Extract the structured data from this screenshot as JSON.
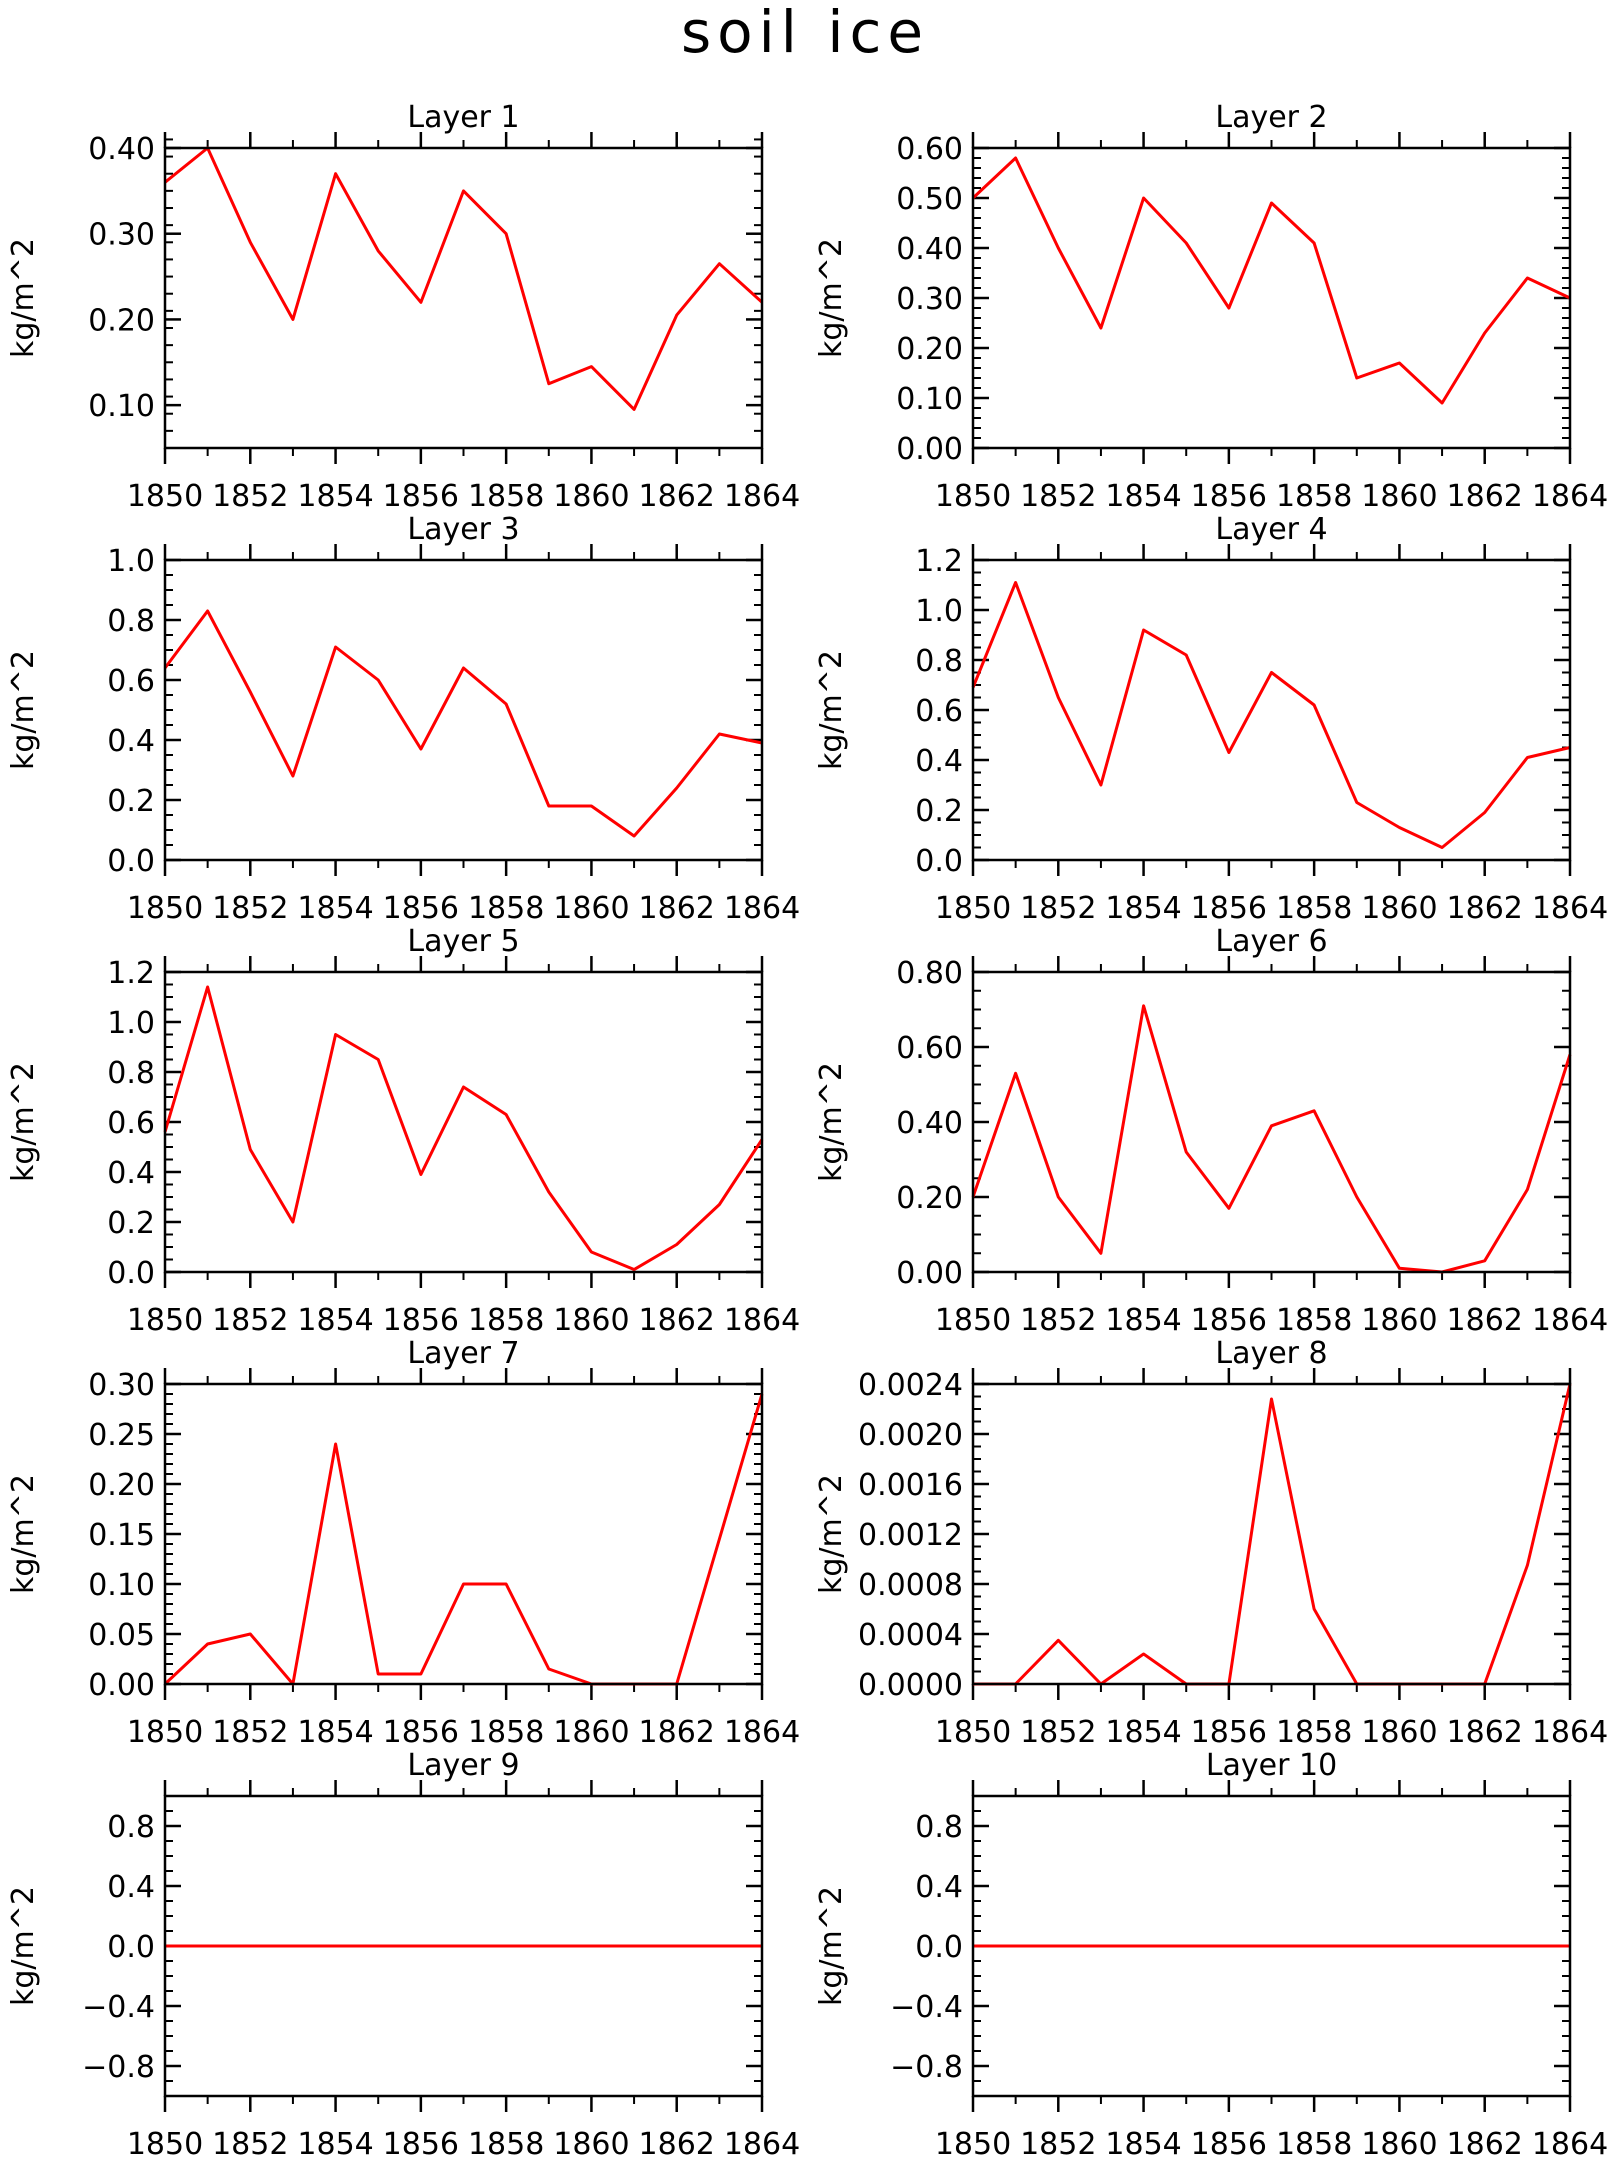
{
  "figure_title": "soil ice",
  "line_color": "#ff0000",
  "chart_data": [
    {
      "type": "line",
      "title": "Layer 1",
      "ylabel": "kg/m^2",
      "xlabel": "",
      "x": [
        1850,
        1851,
        1852,
        1853,
        1854,
        1855,
        1856,
        1857,
        1858,
        1859,
        1860,
        1861,
        1862,
        1863,
        1864
      ],
      "values": [
        0.36,
        0.4,
        0.29,
        0.2,
        0.37,
        0.28,
        0.22,
        0.35,
        0.3,
        0.125,
        0.145,
        0.095,
        0.205,
        0.265,
        0.22
      ],
      "ylim": [
        0.05,
        0.4
      ],
      "yticks": [
        0.1,
        0.2,
        0.3,
        0.4
      ],
      "ytick_labels": [
        "0.10",
        "0.20",
        "0.30",
        "0.40"
      ],
      "yminor": 0.02,
      "xticks": [
        "1850",
        "1852",
        "1854",
        "1856",
        "1858",
        "1860",
        "1862",
        "1864"
      ]
    },
    {
      "type": "line",
      "title": "Layer 2",
      "ylabel": "kg/m^2",
      "xlabel": "",
      "x": [
        1850,
        1851,
        1852,
        1853,
        1854,
        1855,
        1856,
        1857,
        1858,
        1859,
        1860,
        1861,
        1862,
        1863,
        1864
      ],
      "values": [
        0.5,
        0.58,
        0.4,
        0.24,
        0.5,
        0.41,
        0.28,
        0.49,
        0.41,
        0.14,
        0.17,
        0.09,
        0.23,
        0.34,
        0.3
      ],
      "ylim": [
        0.0,
        0.6
      ],
      "yticks": [
        0.0,
        0.1,
        0.2,
        0.3,
        0.4,
        0.5,
        0.6
      ],
      "ytick_labels": [
        "0.00",
        "0.10",
        "0.20",
        "0.30",
        "0.40",
        "0.50",
        "0.60"
      ],
      "yminor": 0.02,
      "xticks": [
        "1850",
        "1852",
        "1854",
        "1856",
        "1858",
        "1860",
        "1862",
        "1864"
      ]
    },
    {
      "type": "line",
      "title": "Layer 3",
      "ylabel": "kg/m^2",
      "xlabel": "",
      "x": [
        1850,
        1851,
        1852,
        1853,
        1854,
        1855,
        1856,
        1857,
        1858,
        1859,
        1860,
        1861,
        1862,
        1863,
        1864
      ],
      "values": [
        0.64,
        0.83,
        0.56,
        0.28,
        0.71,
        0.6,
        0.37,
        0.64,
        0.52,
        0.18,
        0.18,
        0.08,
        0.24,
        0.42,
        0.39
      ],
      "ylim": [
        0.0,
        1.0
      ],
      "yticks": [
        0.0,
        0.2,
        0.4,
        0.6,
        0.8,
        1.0
      ],
      "ytick_labels": [
        "0.0",
        "0.2",
        "0.4",
        "0.6",
        "0.8",
        "1.0"
      ],
      "yminor": 0.05,
      "xticks": [
        "1850",
        "1852",
        "1854",
        "1856",
        "1858",
        "1860",
        "1862",
        "1864"
      ]
    },
    {
      "type": "line",
      "title": "Layer 4",
      "ylabel": "kg/m^2",
      "xlabel": "",
      "x": [
        1850,
        1851,
        1852,
        1853,
        1854,
        1855,
        1856,
        1857,
        1858,
        1859,
        1860,
        1861,
        1862,
        1863,
        1864
      ],
      "values": [
        0.69,
        1.11,
        0.65,
        0.3,
        0.92,
        0.82,
        0.43,
        0.75,
        0.62,
        0.23,
        0.13,
        0.05,
        0.19,
        0.41,
        0.45
      ],
      "ylim": [
        0.0,
        1.2
      ],
      "yticks": [
        0.0,
        0.2,
        0.4,
        0.6,
        0.8,
        1.0,
        1.2
      ],
      "ytick_labels": [
        "0.0",
        "0.2",
        "0.4",
        "0.6",
        "0.8",
        "1.0",
        "1.2"
      ],
      "yminor": 0.05,
      "xticks": [
        "1850",
        "1852",
        "1854",
        "1856",
        "1858",
        "1860",
        "1862",
        "1864"
      ]
    },
    {
      "type": "line",
      "title": "Layer 5",
      "ylabel": "kg/m^2",
      "xlabel": "",
      "x": [
        1850,
        1851,
        1852,
        1853,
        1854,
        1855,
        1856,
        1857,
        1858,
        1859,
        1860,
        1861,
        1862,
        1863,
        1864
      ],
      "values": [
        0.56,
        1.14,
        0.49,
        0.2,
        0.95,
        0.85,
        0.39,
        0.74,
        0.63,
        0.32,
        0.08,
        0.01,
        0.11,
        0.27,
        0.53
      ],
      "ylim": [
        0.0,
        1.2
      ],
      "yticks": [
        0.0,
        0.2,
        0.4,
        0.6,
        0.8,
        1.0,
        1.2
      ],
      "ytick_labels": [
        "0.0",
        "0.2",
        "0.4",
        "0.6",
        "0.8",
        "1.0",
        "1.2"
      ],
      "yminor": 0.05,
      "xticks": [
        "1850",
        "1852",
        "1854",
        "1856",
        "1858",
        "1860",
        "1862",
        "1864"
      ]
    },
    {
      "type": "line",
      "title": "Layer 6",
      "ylabel": "kg/m^2",
      "xlabel": "",
      "x": [
        1850,
        1851,
        1852,
        1853,
        1854,
        1855,
        1856,
        1857,
        1858,
        1859,
        1860,
        1861,
        1862,
        1863,
        1864
      ],
      "values": [
        0.2,
        0.53,
        0.2,
        0.05,
        0.71,
        0.32,
        0.17,
        0.39,
        0.43,
        0.2,
        0.01,
        0.0,
        0.03,
        0.22,
        0.58
      ],
      "ylim": [
        0.0,
        0.8
      ],
      "yticks": [
        0.0,
        0.2,
        0.4,
        0.6,
        0.8
      ],
      "ytick_labels": [
        "0.00",
        "0.20",
        "0.40",
        "0.60",
        "0.80"
      ],
      "yminor": 0.05,
      "xticks": [
        "1850",
        "1852",
        "1854",
        "1856",
        "1858",
        "1860",
        "1862",
        "1864"
      ]
    },
    {
      "type": "line",
      "title": "Layer 7",
      "ylabel": "kg/m^2",
      "xlabel": "",
      "x": [
        1850,
        1851,
        1852,
        1853,
        1854,
        1855,
        1856,
        1857,
        1858,
        1859,
        1860,
        1861,
        1862,
        1863,
        1864
      ],
      "values": [
        0.0,
        0.04,
        0.05,
        0.0,
        0.24,
        0.01,
        0.01,
        0.1,
        0.1,
        0.015,
        0.0,
        0.0,
        0.0,
        0.145,
        0.29
      ],
      "ylim": [
        0.0,
        0.3
      ],
      "yticks": [
        0.0,
        0.05,
        0.1,
        0.15,
        0.2,
        0.25,
        0.3
      ],
      "ytick_labels": [
        "0.00",
        "0.05",
        "0.10",
        "0.15",
        "0.20",
        "0.25",
        "0.30"
      ],
      "yminor": 0.01,
      "xticks": [
        "1850",
        "1852",
        "1854",
        "1856",
        "1858",
        "1860",
        "1862",
        "1864"
      ]
    },
    {
      "type": "line",
      "title": "Layer 8",
      "ylabel": "kg/m^2",
      "xlabel": "",
      "x": [
        1850,
        1851,
        1852,
        1853,
        1854,
        1855,
        1856,
        1857,
        1858,
        1859,
        1860,
        1861,
        1862,
        1863,
        1864
      ],
      "values": [
        0.0,
        0.0,
        0.00035,
        0.0,
        0.00024,
        0.0,
        0.0,
        0.00228,
        0.0006,
        0.0,
        0.0,
        0.0,
        0.0,
        0.00095,
        0.0024
      ],
      "ylim": [
        0.0,
        0.0024
      ],
      "yticks": [
        0.0,
        0.0004,
        0.0008,
        0.0012,
        0.0016,
        0.002,
        0.0024
      ],
      "ytick_labels": [
        "0.0000",
        "0.0004",
        "0.0008",
        "0.0012",
        "0.0016",
        "0.0020",
        "0.0024"
      ],
      "yminor": 0.0001,
      "xticks": [
        "1850",
        "1852",
        "1854",
        "1856",
        "1858",
        "1860",
        "1862",
        "1864"
      ]
    },
    {
      "type": "line",
      "title": "Layer 9",
      "ylabel": "kg/m^2",
      "xlabel": "",
      "x": [
        1850,
        1851,
        1852,
        1853,
        1854,
        1855,
        1856,
        1857,
        1858,
        1859,
        1860,
        1861,
        1862,
        1863,
        1864
      ],
      "values": [
        0,
        0,
        0,
        0,
        0,
        0,
        0,
        0,
        0,
        0,
        0,
        0,
        0,
        0,
        0
      ],
      "ylim": [
        -1.0,
        1.0
      ],
      "yticks": [
        -0.8,
        -0.4,
        0.0,
        0.4,
        0.8
      ],
      "ytick_labels": [
        "−0.8",
        "−0.4",
        "0.0",
        "0.4",
        "0.8"
      ],
      "yminor": 0.1,
      "xticks": [
        "1850",
        "1852",
        "1854",
        "1856",
        "1858",
        "1860",
        "1862",
        "1864"
      ]
    },
    {
      "type": "line",
      "title": "Layer 10",
      "ylabel": "kg/m^2",
      "xlabel": "",
      "x": [
        1850,
        1851,
        1852,
        1853,
        1854,
        1855,
        1856,
        1857,
        1858,
        1859,
        1860,
        1861,
        1862,
        1863,
        1864
      ],
      "values": [
        0,
        0,
        0,
        0,
        0,
        0,
        0,
        0,
        0,
        0,
        0,
        0,
        0,
        0,
        0
      ],
      "ylim": [
        -1.0,
        1.0
      ],
      "yticks": [
        -0.8,
        -0.4,
        0.0,
        0.4,
        0.8
      ],
      "ytick_labels": [
        "−0.8",
        "−0.4",
        "0.0",
        "0.4",
        "0.8"
      ],
      "yminor": 0.1,
      "xticks": [
        "1850",
        "1852",
        "1854",
        "1856",
        "1858",
        "1860",
        "1862",
        "1864"
      ]
    }
  ]
}
